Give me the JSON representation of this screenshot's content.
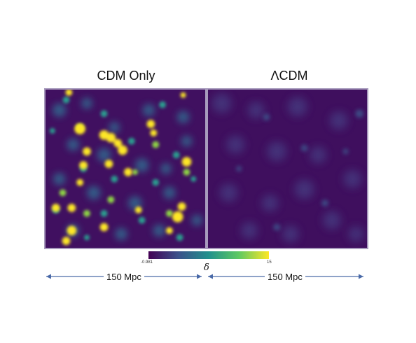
{
  "panels": {
    "left_title": "CDM Only",
    "right_title": "ΛCDM"
  },
  "colorbar": {
    "min_label": "-0.981",
    "max_label": "15",
    "symbol": "δ",
    "colormap": [
      "#440154",
      "#3b528b",
      "#21918c",
      "#5ec962",
      "#fde725"
    ]
  },
  "scale_bars": {
    "left_label": "150 Mpc",
    "right_label": "150 Mpc",
    "arrow_color": "#4a6aa8"
  }
}
